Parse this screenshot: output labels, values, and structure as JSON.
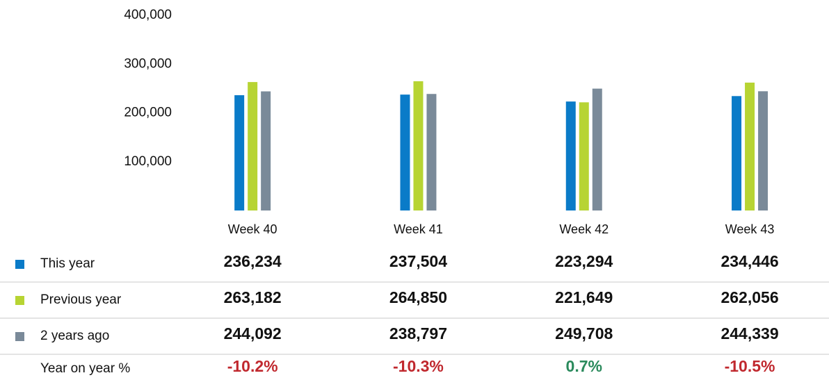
{
  "chart_data": {
    "type": "bar",
    "categories": [
      "Week 40",
      "Week 41",
      "Week 42",
      "Week 43"
    ],
    "series": [
      {
        "name": "This year",
        "color": "#0a7bc8",
        "values": [
          236234,
          237504,
          223294,
          234446
        ],
        "value_labels": [
          "236,234",
          "237,504",
          "223,294",
          "234,446"
        ]
      },
      {
        "name": "Previous year",
        "color": "#b7d433",
        "values": [
          263182,
          264850,
          221649,
          262056
        ],
        "value_labels": [
          "263,182",
          "264,850",
          "221,649",
          "262,056"
        ]
      },
      {
        "name": "2 years ago",
        "color": "#7a8a99",
        "values": [
          244092,
          238797,
          249708,
          244339
        ],
        "value_labels": [
          "244,092",
          "238,797",
          "249,708",
          "244,339"
        ]
      }
    ],
    "change": {
      "name": "Year on year %",
      "values": [
        -10.2,
        -10.3,
        0.7,
        -10.5
      ],
      "value_labels": [
        "-10.2%",
        "-10.3%",
        "0.7%",
        "-10.5%"
      ],
      "positive_color": "#2a8a5c",
      "negative_color": "#c0282e"
    },
    "ylim": [
      0,
      400000
    ],
    "yticks": [
      {
        "value": 100000,
        "label": "100,000"
      },
      {
        "value": 200000,
        "label": "200,000"
      },
      {
        "value": 300000,
        "label": "300,000"
      },
      {
        "value": 400000,
        "label": "400,000"
      }
    ]
  }
}
